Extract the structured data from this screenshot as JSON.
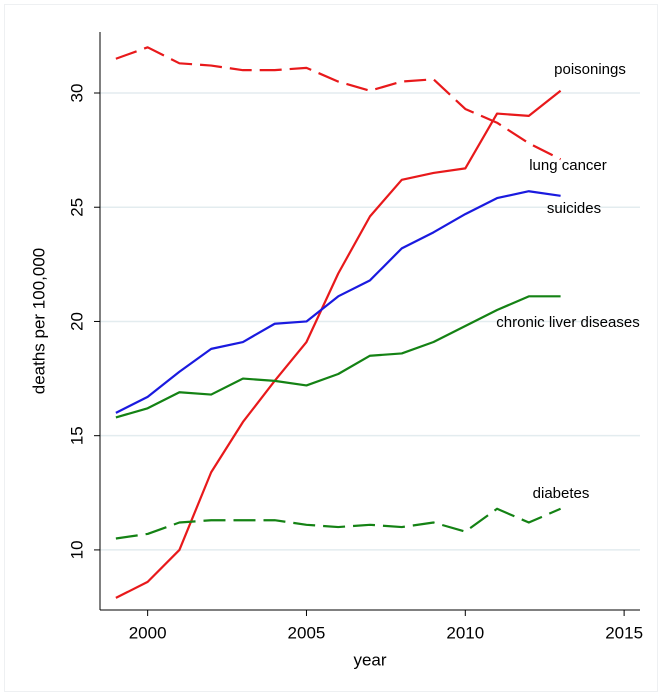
{
  "chart_data": {
    "type": "line",
    "x": [
      1999,
      2000,
      2001,
      2002,
      2003,
      2004,
      2005,
      2006,
      2007,
      2008,
      2009,
      2010,
      2011,
      2012,
      2013
    ],
    "series": [
      {
        "name": "poisonings",
        "color": "#e8191b",
        "dashed": false,
        "values": [
          7.9,
          8.6,
          10.0,
          13.4,
          15.6,
          17.4,
          19.1,
          22.1,
          24.6,
          26.2,
          26.5,
          26.7,
          29.1,
          29.0,
          30.1
        ]
      },
      {
        "name": "lung cancer",
        "color": "#e8191b",
        "dashed": true,
        "values": [
          31.5,
          32.0,
          31.3,
          31.2,
          31.0,
          31.0,
          31.1,
          30.5,
          30.1,
          30.5,
          30.6,
          29.3,
          28.7,
          27.8,
          27.1
        ]
      },
      {
        "name": "suicides",
        "color": "#1a1adf",
        "dashed": false,
        "values": [
          16.0,
          16.7,
          17.8,
          18.8,
          19.1,
          19.9,
          20.0,
          21.1,
          21.8,
          23.2,
          23.9,
          24.7,
          25.4,
          25.7,
          25.5
        ]
      },
      {
        "name": "chronic liver diseases",
        "color": "#148214",
        "dashed": false,
        "values": [
          15.8,
          16.2,
          16.9,
          16.8,
          17.5,
          17.4,
          17.2,
          17.7,
          18.5,
          18.6,
          19.1,
          19.8,
          20.5,
          21.1,
          21.1
        ]
      },
      {
        "name": "diabetes",
        "color": "#148214",
        "dashed": true,
        "values": [
          10.5,
          10.7,
          11.2,
          11.3,
          11.3,
          11.3,
          11.1,
          11.0,
          11.1,
          11.0,
          11.2,
          10.8,
          11.8,
          11.2,
          11.8
        ]
      }
    ],
    "xlabel": "year",
    "ylabel": "deaths per 100,000",
    "xlim": [
      1998.5,
      2015.5
    ],
    "xticks": [
      2000,
      2005,
      2010,
      2015
    ],
    "ylim": [
      7.37,
      32.67
    ],
    "yticks": [
      10,
      15,
      20,
      25,
      30
    ],
    "grid": true
  }
}
